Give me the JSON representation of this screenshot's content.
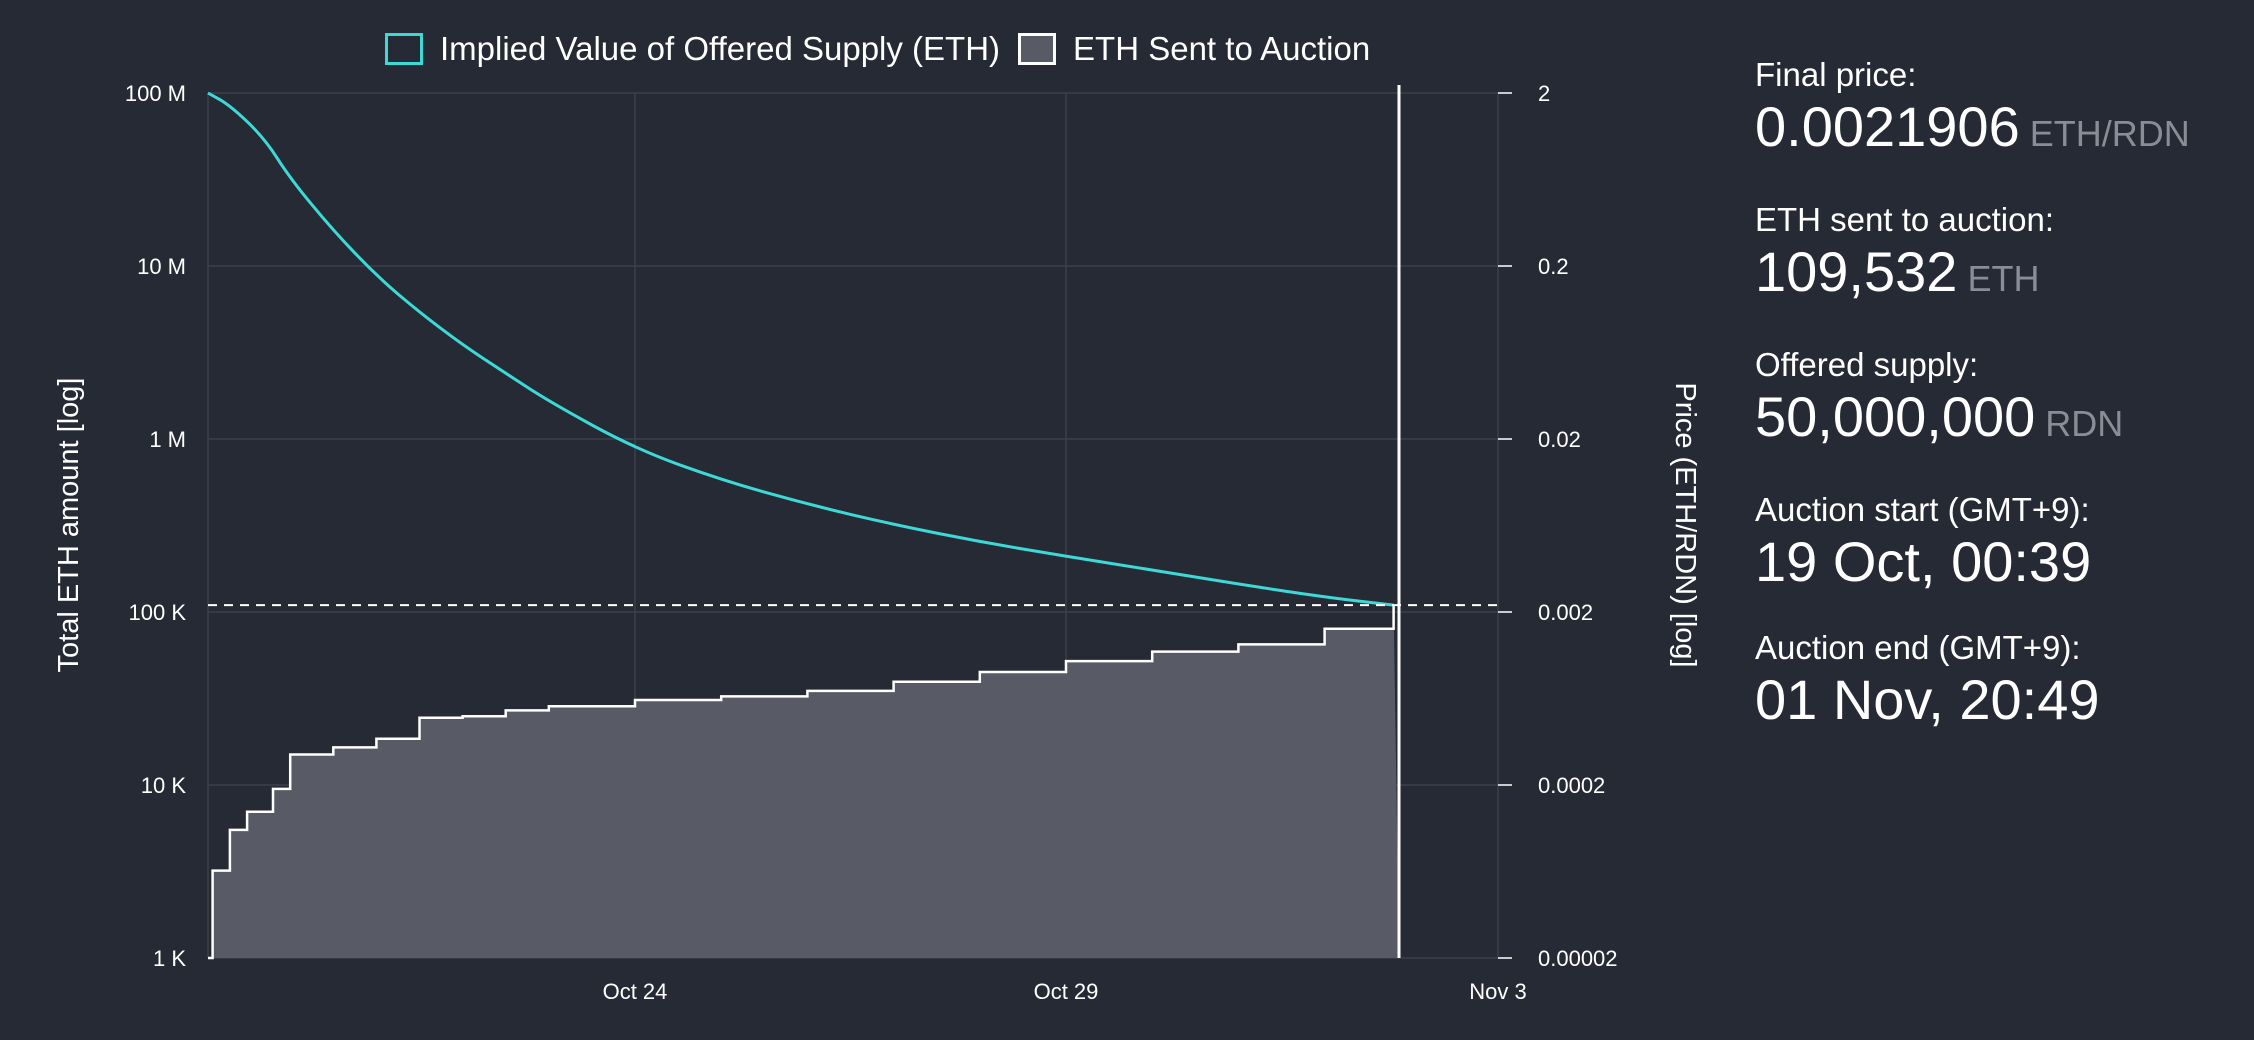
{
  "legend": {
    "implied": "Implied Value of Offered Supply (ETH)",
    "sent": "ETH Sent to Auction"
  },
  "colors": {
    "background": "#262a34",
    "implied_line": "#3dd9d6",
    "area_fill": "#585b66",
    "area_stroke": "#ffffff",
    "grid": "#3c404b",
    "muted_unit": "#8a8d96"
  },
  "stats": [
    {
      "label": "Final price:",
      "value": "0.0021906",
      "unit": "ETH/RDN"
    },
    {
      "label": "ETH sent to auction:",
      "value": "109,532",
      "unit": "ETH"
    },
    {
      "label": "Offered supply:",
      "value": "50,000,000",
      "unit": "RDN"
    },
    {
      "label": "Auction start (GMT+9):",
      "value": "19 Oct, 00:39",
      "unit": ""
    },
    {
      "label": "Auction end (GMT+9):",
      "value": "01 Nov, 20:49",
      "unit": ""
    }
  ],
  "chart_data": {
    "type": "line",
    "ylabel_left": "Total ETH amount [log]",
    "ylabel_right": "Price (ETH/RDN) [log]",
    "y_scale": "log",
    "ylim_left": [
      1000,
      100000000
    ],
    "ylim_right": [
      2e-05,
      2
    ],
    "grid": true,
    "legend_position": "top",
    "x_ticks": [
      "Oct 24",
      "Oct 29",
      "Nov 3"
    ],
    "y_ticks_left": [
      "1 K",
      "10 K",
      "100 K",
      "1 M",
      "10 M",
      "100 M"
    ],
    "y_ticks_right": [
      "0.00002",
      "0.0002",
      "0.002",
      "0.02",
      "0.2",
      "2"
    ],
    "final_value_line": 109532,
    "series": [
      {
        "name": "Implied Value of Offered Supply (ETH)",
        "x": [
          "Oct 19",
          "Oct 19.3",
          "Oct 19.7",
          "Oct 20",
          "Oct 20.5",
          "Oct 21",
          "Oct 21.5",
          "Oct 22",
          "Oct 22.5",
          "Oct 23",
          "Oct 24",
          "Oct 25",
          "Oct 26",
          "Oct 27",
          "Oct 28",
          "Oct 29",
          "Oct 30",
          "Oct 31",
          "Nov 1",
          "Nov 1.8"
        ],
        "values": [
          100000000,
          85000000,
          55000000,
          32000000,
          16000000,
          8800000,
          5400000,
          3500000,
          2400000,
          1650000,
          880000,
          580000,
          420000,
          320000,
          255000,
          210000,
          175000,
          145000,
          122000,
          109532
        ]
      },
      {
        "name": "ETH Sent to Auction",
        "x": [
          "Oct 19",
          "Oct 19.1",
          "Oct 19.3",
          "Oct 19.5",
          "Oct 19.8",
          "Oct 20",
          "Oct 20.5",
          "Oct 21",
          "Oct 21.5",
          "Oct 22",
          "Oct 22.5",
          "Oct 23",
          "Oct 24",
          "Oct 25",
          "Oct 26",
          "Oct 27",
          "Oct 28",
          "Oct 29",
          "Oct 30",
          "Oct 31",
          "Nov 1",
          "Nov 1.8"
        ],
        "values": [
          1000,
          3200,
          5500,
          7000,
          9500,
          15000,
          16500,
          18500,
          24500,
          25000,
          27000,
          28500,
          31000,
          32500,
          35000,
          39500,
          45000,
          52000,
          59000,
          65000,
          80000,
          109532
        ]
      }
    ]
  }
}
